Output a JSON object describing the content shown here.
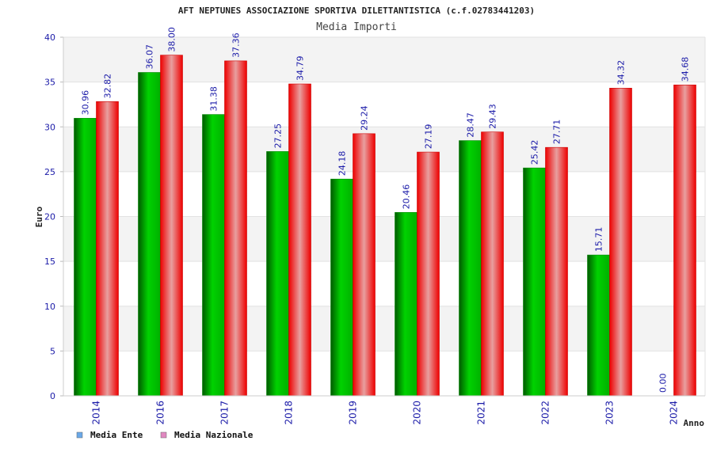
{
  "chart_data": {
    "type": "bar",
    "title": "AFT NEPTUNES ASSOCIAZIONE SPORTIVA DILETTANTISTICA (c.f.02783441203)",
    "subtitle": "Media Importi",
    "xlabel": "Anno",
    "ylabel": "Euro",
    "ylim": [
      0,
      40
    ],
    "yticks": [
      0,
      5,
      10,
      15,
      20,
      25,
      30,
      35,
      40
    ],
    "grid": true,
    "legend_position": "bottom-left",
    "categories": [
      "2014",
      "2016",
      "2017",
      "2018",
      "2019",
      "2020",
      "2021",
      "2022",
      "2023",
      "2024"
    ],
    "series": [
      {
        "name": "Media Ente",
        "values": [
          30.96,
          36.07,
          31.38,
          27.25,
          24.18,
          20.46,
          28.47,
          25.42,
          15.71,
          0.0
        ],
        "labels": [
          "30.96",
          "36.07",
          "31.38",
          "27.25",
          "24.18",
          "20.46",
          "28.47",
          "25.42",
          "15.71",
          "0.00"
        ],
        "bar_color": "#00b400",
        "legend_color": "#6aa8e8"
      },
      {
        "name": "Media Nazionale",
        "values": [
          32.82,
          38.0,
          37.36,
          34.79,
          29.24,
          27.19,
          29.43,
          27.71,
          34.32,
          34.68
        ],
        "labels": [
          "32.82",
          "38.00",
          "37.36",
          "34.79",
          "29.24",
          "27.19",
          "29.43",
          "27.71",
          "34.32",
          "34.68"
        ],
        "bar_color": "#ee1111",
        "legend_color": "#e088c0"
      }
    ]
  }
}
